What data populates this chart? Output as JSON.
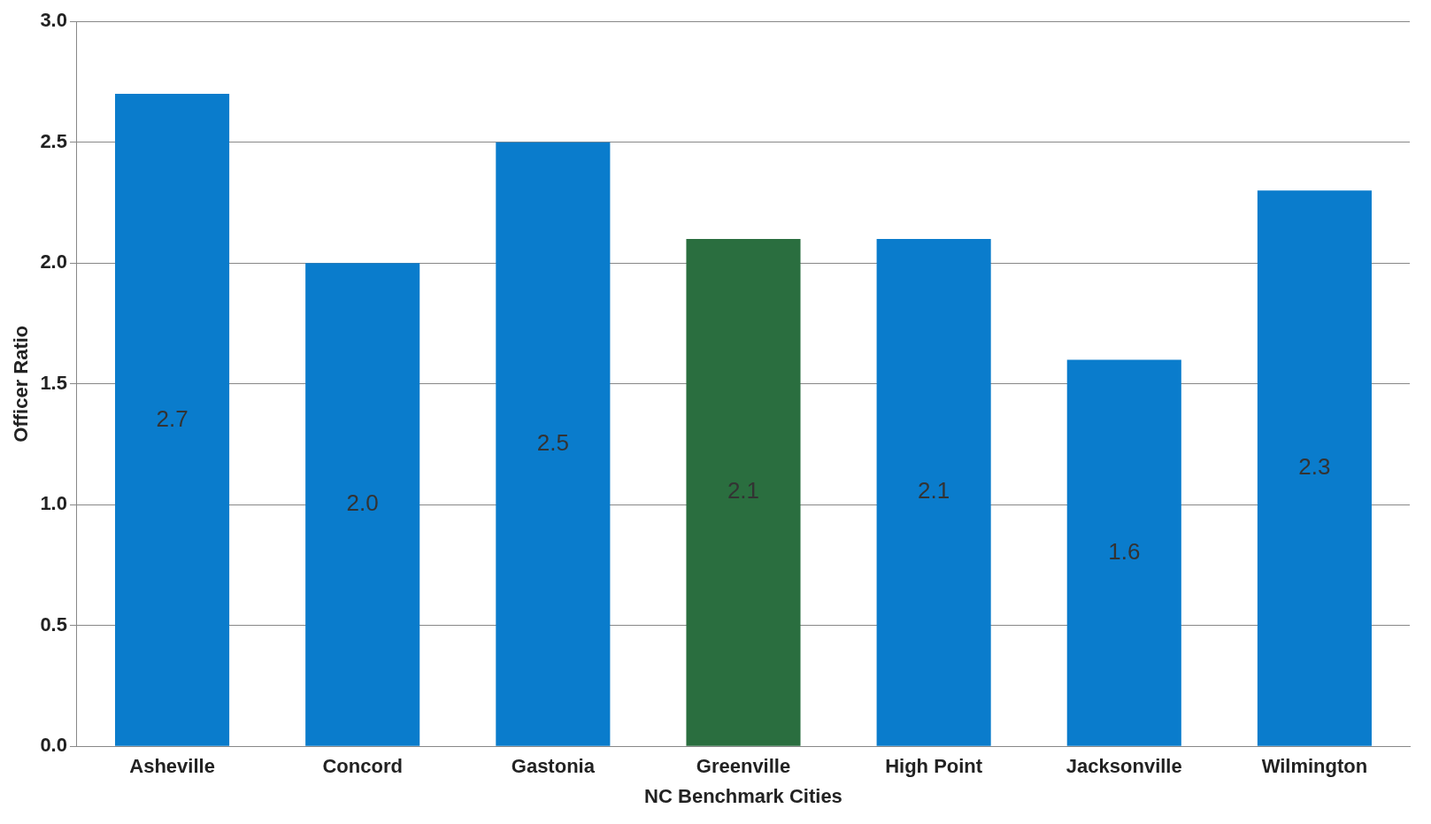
{
  "chart_data": {
    "type": "bar",
    "xlabel": "NC Benchmark Cities",
    "ylabel": "Officer Ratio",
    "categories": [
      "Asheville",
      "Concord",
      "Gastonia",
      "Greenville",
      "High Point",
      "Jacksonville",
      "Wilmington"
    ],
    "values": [
      2.7,
      2.0,
      2.5,
      2.1,
      2.1,
      1.6,
      2.3
    ],
    "colors": [
      "#0a7ccc",
      "#0a7ccc",
      "#0a7ccc",
      "#2a6e3f",
      "#0a7ccc",
      "#0a7ccc",
      "#0a7ccc"
    ],
    "value_labels": [
      "2.7",
      "2.0",
      "2.5",
      "2.1",
      "2.1",
      "1.6",
      "2.3"
    ],
    "ylim": [
      0,
      3
    ],
    "yticks": [
      {
        "value": 0,
        "label": "0.0"
      },
      {
        "value": 0.5,
        "label": "0.5"
      },
      {
        "value": 1,
        "label": "1.0"
      },
      {
        "value": 1.5,
        "label": "1.5"
      },
      {
        "value": 2,
        "label": "2.0"
      },
      {
        "value": 2.5,
        "label": "2.5"
      },
      {
        "value": 3,
        "label": "3.0"
      }
    ],
    "grid": "y",
    "legend": false
  }
}
